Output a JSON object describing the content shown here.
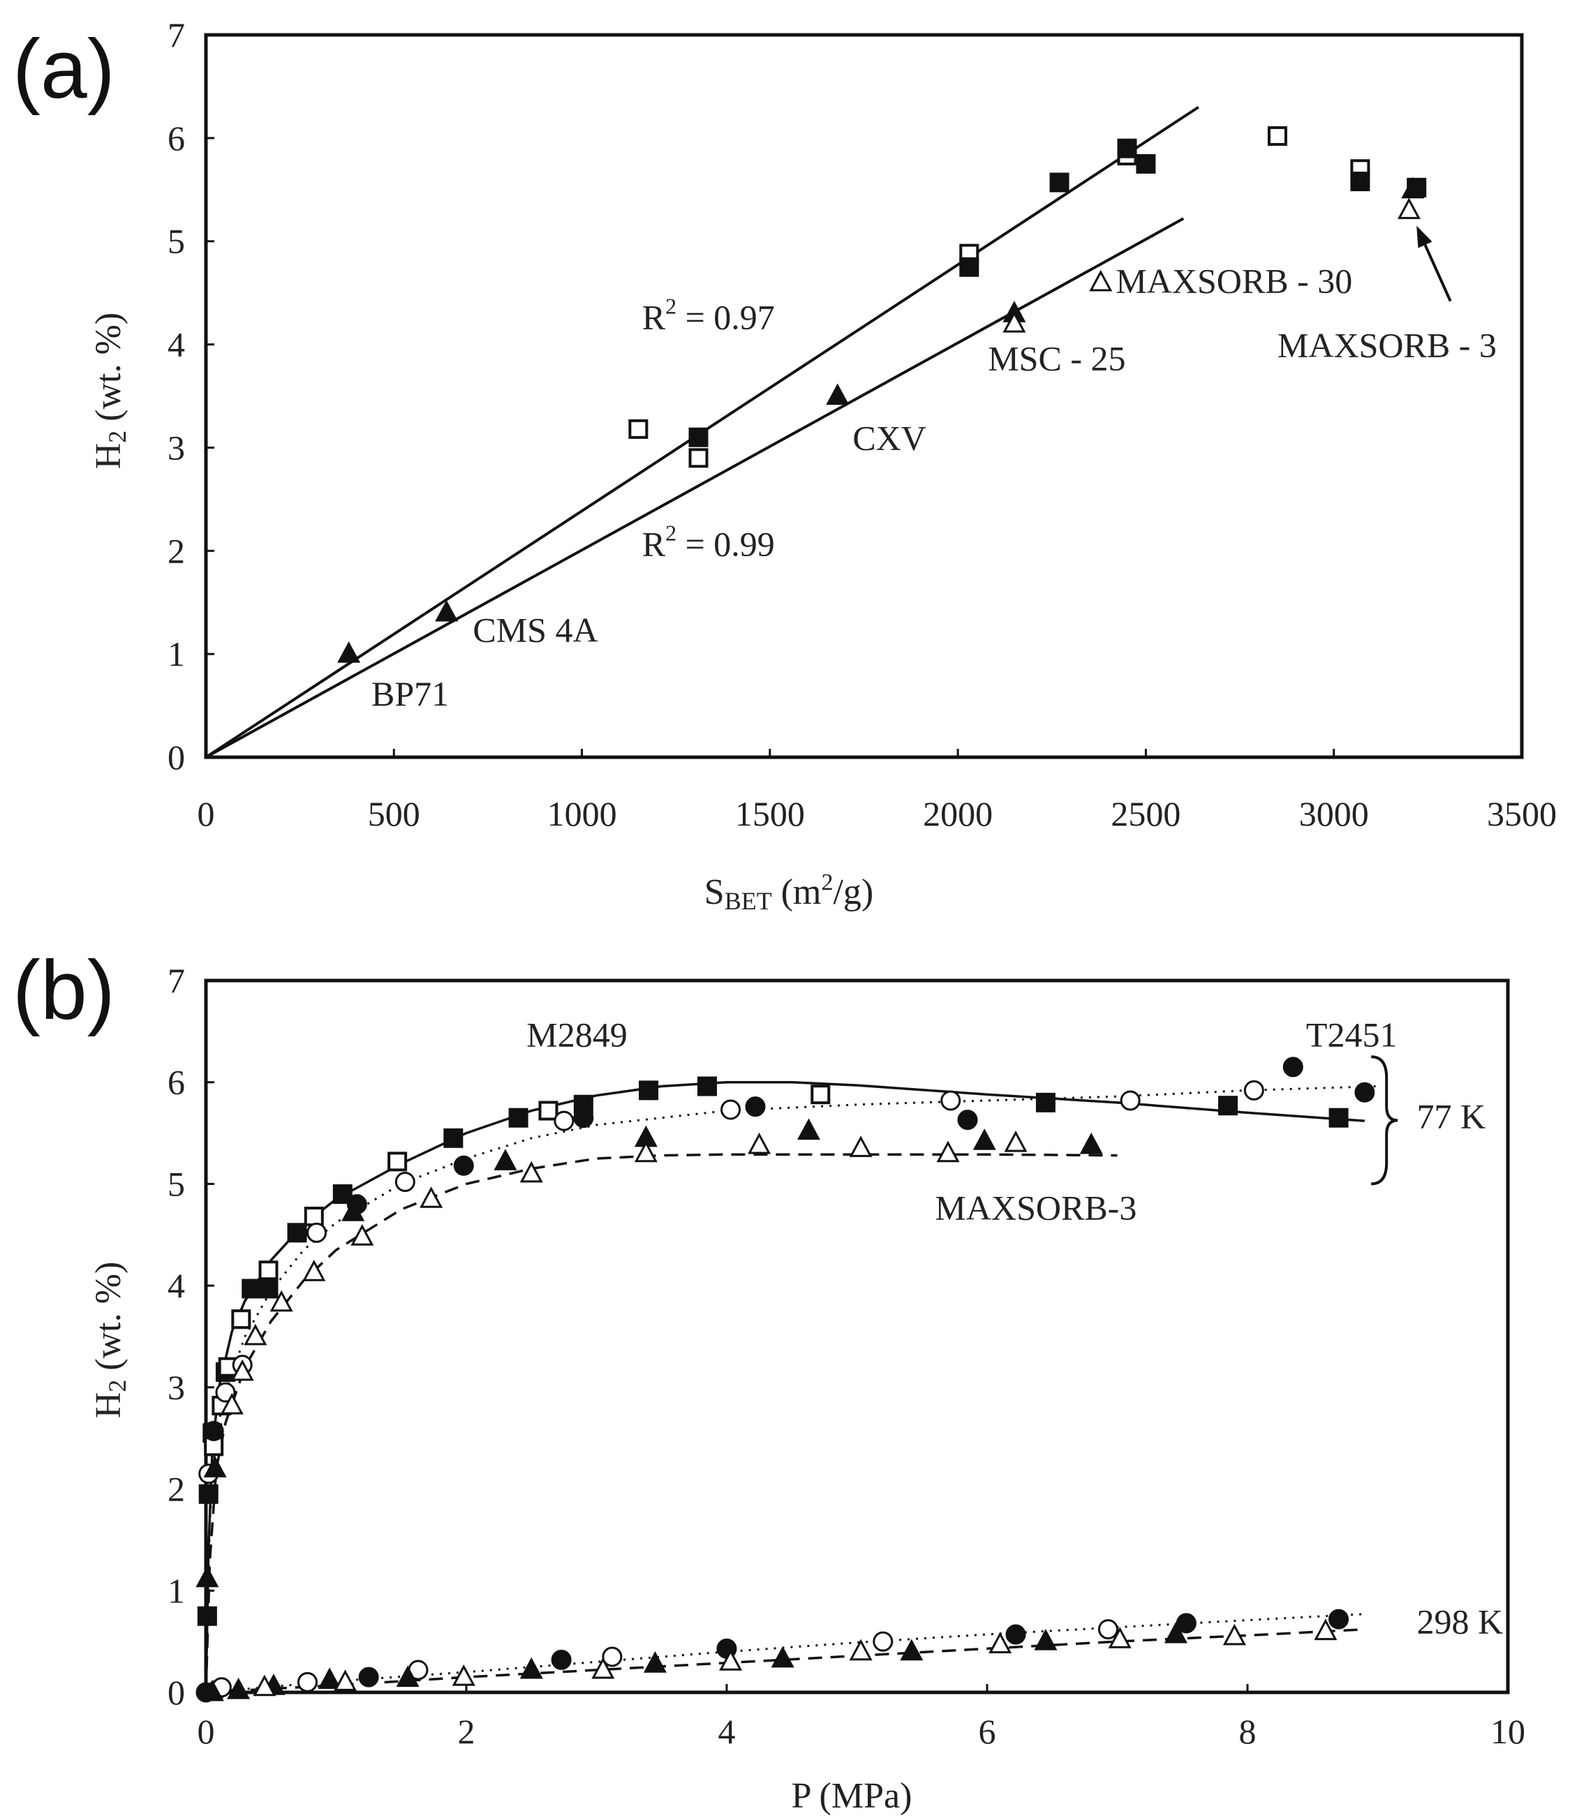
{
  "chart_data": [
    {
      "panel": "(a)",
      "type": "scatter",
      "xlabel": "S_BET (m²/g)",
      "xlabel_main": "S",
      "xlabel_sub": "BET",
      "xlabel_unit_pre": " (m",
      "xlabel_unit_sup": "2",
      "xlabel_unit_post": "/g)",
      "ylabel": "H₂ (wt. %)",
      "ylabel_main": "H",
      "ylabel_sub": "2",
      "ylabel_rest": " (wt. %)",
      "xlim": [
        0,
        3500
      ],
      "ylim": [
        0,
        7
      ],
      "xticks": [
        0,
        500,
        1000,
        1500,
        2000,
        2500,
        3000,
        3500
      ],
      "yticks": [
        0,
        1,
        2,
        3,
        4,
        5,
        6,
        7
      ],
      "series": [
        {
          "name": "open squares",
          "marker": "square-open",
          "x": [
            1150,
            1310,
            2030,
            2450,
            2850,
            3070
          ],
          "y": [
            3.18,
            2.9,
            4.88,
            5.83,
            6.02,
            5.7
          ]
        },
        {
          "name": "filled squares",
          "marker": "square-filled",
          "x": [
            1310,
            2030,
            2270,
            2450,
            2500,
            3070,
            3220
          ],
          "y": [
            3.1,
            4.75,
            5.57,
            5.9,
            5.75,
            5.58,
            5.52
          ]
        },
        {
          "name": "filled triangles",
          "marker": "triangle-filled",
          "x": [
            380,
            640,
            1680,
            2150,
            3210
          ],
          "y": [
            1.0,
            1.4,
            3.5,
            4.3,
            5.5
          ]
        },
        {
          "name": "open triangles",
          "marker": "triangle-open",
          "x": [
            2150,
            2380,
            3200
          ],
          "y": [
            4.2,
            4.6,
            5.3
          ]
        }
      ],
      "fit_lines": [
        {
          "name": "squares fit",
          "x": [
            0,
            2640
          ],
          "y": [
            0,
            6.3
          ]
        },
        {
          "name": "triangles fit",
          "x": [
            0,
            2600
          ],
          "y": [
            0,
            5.22
          ]
        }
      ],
      "annotations": [
        {
          "text": "R",
          "sup": "2",
          "rest": " = 0.97",
          "x": 1160,
          "y": 4.15
        },
        {
          "text": "R",
          "sup": "2",
          "rest": " = 0.99",
          "x": 1160,
          "y": 1.95
        },
        {
          "text": "MAXSORB - 30",
          "x": 2420,
          "y": 4.5
        },
        {
          "text": "MSC - 25",
          "x": 2080,
          "y": 3.75
        },
        {
          "text": "CXV",
          "x": 1720,
          "y": 2.98
        },
        {
          "text": "CMS 4A",
          "x": 710,
          "y": 1.12
        },
        {
          "text": "BP71",
          "x": 440,
          "y": 0.5
        },
        {
          "text": "MAXSORB - 3",
          "x": 2850,
          "y": 3.88
        }
      ],
      "arrow": {
        "from": [
          3310,
          4.42
        ],
        "to": [
          3220,
          5.15
        ]
      }
    },
    {
      "panel": "(b)",
      "type": "scatter",
      "xlabel": "P (MPa)",
      "ylabel": "H₂ (wt. %)",
      "ylabel_main": "H",
      "ylabel_sub": "2",
      "ylabel_rest": " (wt. %)",
      "xlim": [
        0,
        10
      ],
      "ylim": [
        0,
        7
      ],
      "xticks": [
        0,
        2,
        4,
        6,
        8,
        10
      ],
      "yticks": [
        0,
        1,
        2,
        3,
        4,
        5,
        6,
        7
      ],
      "series": [
        {
          "name": "M2849 77 K adsorption",
          "marker": "square-filled",
          "x": [
            0.01,
            0.02,
            0.05,
            0.15,
            0.35,
            0.48,
            0.7,
            1.05,
            1.9,
            2.4,
            2.9,
            3.4,
            3.85,
            6.45,
            7.85,
            8.7
          ],
          "y": [
            0.75,
            1.95,
            2.55,
            3.15,
            3.97,
            3.97,
            4.52,
            4.9,
            5.45,
            5.65,
            5.78,
            5.92,
            5.96,
            5.8,
            5.77,
            5.65
          ]
        },
        {
          "name": "M2849 77 K desorption",
          "marker": "square-open",
          "x": [
            0.06,
            0.12,
            0.17,
            0.27,
            0.48,
            0.83,
            1.47,
            2.63,
            4.72
          ],
          "y": [
            2.42,
            2.82,
            3.2,
            3.67,
            4.15,
            4.68,
            5.22,
            5.72,
            5.88
          ]
        },
        {
          "name": "T2451 77 K adsorption",
          "marker": "circle-filled",
          "x": [
            0.06,
            0.45,
            1.16,
            1.98,
            2.9,
            4.22,
            5.85,
            8.35,
            8.9
          ],
          "y": [
            2.57,
            3.98,
            4.8,
            5.18,
            5.65,
            5.76,
            5.63,
            6.15,
            5.9
          ]
        },
        {
          "name": "T2451 77 K desorption",
          "marker": "circle-open",
          "x": [
            0.02,
            0.15,
            0.28,
            0.85,
            1.53,
            2.75,
            4.03,
            5.72,
            7.1,
            8.05
          ],
          "y": [
            2.15,
            2.95,
            3.22,
            4.52,
            5.02,
            5.62,
            5.73,
            5.82,
            5.82,
            5.92
          ]
        },
        {
          "name": "MAXSORB-3 77 K adsorption",
          "marker": "triangle-filled",
          "x": [
            0.01,
            0.07,
            1.13,
            2.3,
            3.38,
            4.63,
            5.98,
            6.8
          ],
          "y": [
            1.12,
            2.2,
            4.72,
            5.22,
            5.45,
            5.52,
            5.42,
            5.38
          ]
        },
        {
          "name": "MAXSORB-3 77 K desorption",
          "marker": "triangle-open",
          "x": [
            0.2,
            0.28,
            0.38,
            0.58,
            0.83,
            1.2,
            1.73,
            2.5,
            3.38,
            4.25,
            5.03,
            5.7,
            6.22
          ],
          "y": [
            2.82,
            3.15,
            3.5,
            3.83,
            4.13,
            4.48,
            4.85,
            5.1,
            5.3,
            5.38,
            5.35,
            5.3,
            5.4
          ]
        },
        {
          "name": "298 K filled circles",
          "marker": "circle-filled",
          "x": [
            0.0,
            0.08,
            1.25,
            2.73,
            4.0,
            6.22,
            7.53,
            8.7
          ],
          "y": [
            0.0,
            0.02,
            0.15,
            0.32,
            0.43,
            0.57,
            0.68,
            0.72
          ]
        },
        {
          "name": "298 K open circles",
          "marker": "circle-open",
          "x": [
            0.12,
            0.78,
            1.63,
            3.12,
            5.2,
            6.93
          ],
          "y": [
            0.05,
            0.1,
            0.22,
            0.35,
            0.5,
            0.62
          ]
        },
        {
          "name": "298 K filled triangles",
          "marker": "triangle-filled",
          "x": [
            0.05,
            0.25,
            0.52,
            0.95,
            1.55,
            2.5,
            3.45,
            4.43,
            5.42,
            6.45,
            7.45
          ],
          "y": [
            0.0,
            0.02,
            0.06,
            0.12,
            0.14,
            0.22,
            0.28,
            0.33,
            0.4,
            0.5,
            0.57
          ]
        },
        {
          "name": "298 K open triangles",
          "marker": "triangle-open",
          "x": [
            0.45,
            1.07,
            1.98,
            3.05,
            4.03,
            5.03,
            6.1,
            7.02,
            7.9,
            8.6
          ],
          "y": [
            0.05,
            0.1,
            0.15,
            0.22,
            0.3,
            0.4,
            0.47,
            0.52,
            0.55,
            0.6
          ]
        }
      ],
      "curves": [
        {
          "name": "M2849 fit",
          "style": "solid",
          "x": [
            0,
            0.02,
            0.05,
            0.1,
            0.2,
            0.3,
            0.5,
            0.75,
            1.0,
            1.5,
            2.0,
            2.5,
            3.0,
            3.5,
            4.0,
            4.5,
            5.0,
            6.0,
            7.0,
            8.0,
            8.9
          ],
          "y": [
            0,
            1.4,
            2.4,
            3.0,
            3.55,
            3.85,
            4.25,
            4.6,
            4.85,
            5.2,
            5.5,
            5.72,
            5.87,
            5.96,
            6.0,
            6.0,
            5.97,
            5.88,
            5.8,
            5.7,
            5.62
          ]
        },
        {
          "name": "T2451 fit",
          "style": "dotted",
          "x": [
            0,
            0.03,
            0.08,
            0.15,
            0.3,
            0.5,
            0.75,
            1.0,
            1.5,
            2.0,
            2.5,
            3.0,
            3.5,
            4.0,
            5.0,
            6.0,
            7.0,
            8.0,
            9.0
          ],
          "y": [
            0,
            1.7,
            2.55,
            2.95,
            3.5,
            3.95,
            4.35,
            4.62,
            5.0,
            5.25,
            5.45,
            5.58,
            5.65,
            5.72,
            5.78,
            5.82,
            5.86,
            5.92,
            5.96
          ]
        },
        {
          "name": "MAXSORB-3 fit",
          "style": "dashed",
          "x": [
            0,
            0.03,
            0.08,
            0.15,
            0.3,
            0.5,
            0.75,
            1.0,
            1.5,
            2.0,
            2.5,
            3.0,
            3.5,
            4.0,
            5.0,
            6.0,
            7.0
          ],
          "y": [
            0,
            1.3,
            2.2,
            2.65,
            3.2,
            3.65,
            4.05,
            4.35,
            4.75,
            5.0,
            5.15,
            5.25,
            5.28,
            5.29,
            5.29,
            5.29,
            5.28
          ]
        },
        {
          "name": "298 K dotted fit",
          "style": "dotted",
          "x": [
            0,
            1,
            2,
            3,
            4,
            5,
            6,
            7,
            8,
            8.9
          ],
          "y": [
            0.0,
            0.11,
            0.2,
            0.3,
            0.4,
            0.49,
            0.57,
            0.64,
            0.71,
            0.77
          ]
        },
        {
          "name": "298 K dashed fit",
          "style": "dashed",
          "x": [
            0,
            1,
            2,
            3,
            4,
            5,
            6,
            7,
            8,
            8.9
          ],
          "y": [
            0.0,
            0.07,
            0.15,
            0.22,
            0.29,
            0.36,
            0.43,
            0.5,
            0.56,
            0.62
          ]
        }
      ],
      "annotations": [
        {
          "text": "M2849",
          "x": 2.85,
          "y": 6.35
        },
        {
          "text": "T2451",
          "x": 8.8,
          "y": 6.35
        },
        {
          "text": "MAXSORB-3",
          "x": 5.6,
          "y": 4.65
        },
        {
          "text": "77 K",
          "x": 9.3,
          "y": 5.55
        },
        {
          "text": "298 K",
          "x": 9.3,
          "y": 0.58
        }
      ]
    }
  ]
}
